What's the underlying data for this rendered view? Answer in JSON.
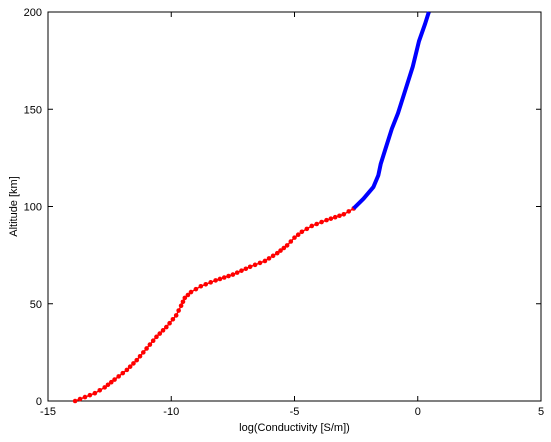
{
  "chart_data": {
    "type": "scatter",
    "title": "",
    "xlabel": "log(Conductivity [S/m])",
    "ylabel": "Altitude [km]",
    "xlim": [
      -15,
      5
    ],
    "ylim": [
      0,
      200
    ],
    "xticks": [
      -15,
      -10,
      -5,
      0,
      5
    ],
    "yticks": [
      0,
      50,
      100,
      150,
      200
    ],
    "xtick_labels": [
      "-15",
      "-10",
      "-5",
      "0",
      "5"
    ],
    "ytick_labels": [
      "0",
      "50",
      "100",
      "150",
      "200"
    ],
    "grid": false,
    "legend": false,
    "series": [
      {
        "style": "dotted-markers",
        "color": "#ff0000",
        "points": [
          [
            -13.9,
            0
          ],
          [
            -13.5,
            2
          ],
          [
            -13.1,
            4
          ],
          [
            -12.7,
            7
          ],
          [
            -12.3,
            11
          ],
          [
            -11.8,
            16
          ],
          [
            -11.4,
            21
          ],
          [
            -11.0,
            27
          ],
          [
            -10.6,
            33
          ],
          [
            -10.2,
            38
          ],
          [
            -9.8,
            44
          ],
          [
            -9.6,
            49
          ],
          [
            -9.45,
            53
          ],
          [
            -9.2,
            56
          ],
          [
            -8.8,
            59
          ],
          [
            -8.2,
            62
          ],
          [
            -7.5,
            65
          ],
          [
            -6.8,
            69
          ],
          [
            -6.2,
            72
          ],
          [
            -5.7,
            76
          ],
          [
            -5.3,
            80
          ],
          [
            -5.0,
            84
          ],
          [
            -4.7,
            87
          ],
          [
            -4.3,
            90
          ],
          [
            -3.7,
            93
          ],
          [
            -3.0,
            96
          ],
          [
            -2.6,
            99
          ]
        ]
      },
      {
        "style": "line",
        "color": "#0000ff",
        "points": [
          [
            -2.6,
            99
          ],
          [
            -2.2,
            104
          ],
          [
            -1.8,
            110
          ],
          [
            -1.6,
            116
          ],
          [
            -1.5,
            122
          ],
          [
            -1.3,
            130
          ],
          [
            -1.05,
            140
          ],
          [
            -0.8,
            148
          ],
          [
            -0.5,
            160
          ],
          [
            -0.2,
            172
          ],
          [
            0.05,
            185
          ],
          [
            0.3,
            194
          ],
          [
            0.45,
            200
          ]
        ]
      }
    ]
  }
}
